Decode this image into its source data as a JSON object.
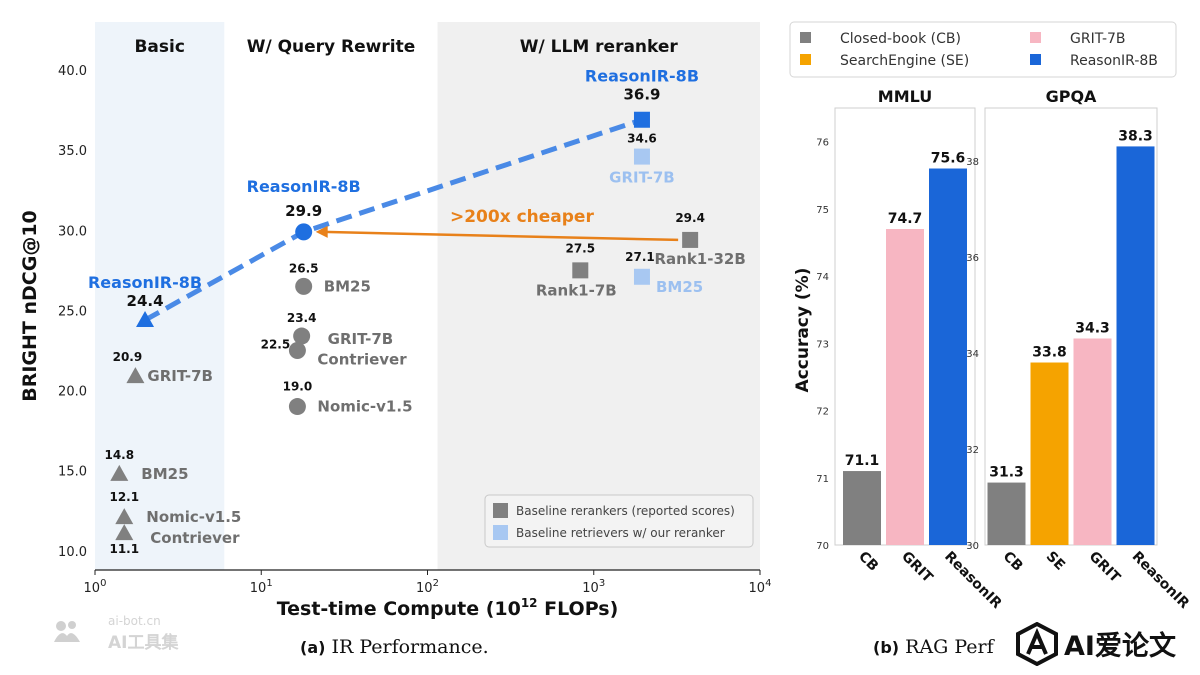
{
  "chart_data": [
    {
      "type": "scatter",
      "title": "",
      "xlabel": "Test-time Compute (10",
      "xlabel_sup": "12",
      "xlabel_tail": " FLOPs)",
      "ylabel": "BRIGHT nDCG@10",
      "xscale": "log",
      "xlim": [
        1,
        10000
      ],
      "ylim": [
        8.8,
        43
      ],
      "yticks": [
        10,
        15,
        20,
        25,
        30,
        35,
        40
      ],
      "ytick_labels": [
        "10.0",
        "15.0",
        "20.0",
        "25.0",
        "30.0",
        "35.0",
        "40.0"
      ],
      "xticks": [
        {
          "base": "10",
          "exp": "0",
          "value": 1
        },
        {
          "base": "10",
          "exp": "1",
          "value": 10
        },
        {
          "base": "10",
          "exp": "2",
          "value": 100
        },
        {
          "base": "10",
          "exp": "3",
          "value": 1000
        },
        {
          "base": "10",
          "exp": "4",
          "value": 10000
        }
      ],
      "regions": [
        {
          "label": "Basic",
          "from": 1,
          "to": 6,
          "color": "#eef4fa"
        },
        {
          "label": "W/ Query Rewrite",
          "from": 6,
          "to": 115,
          "color": "#ffffff"
        },
        {
          "label": "W/ LLM reranker",
          "from": 115,
          "to": 10000,
          "color": "#f0f0f0"
        }
      ],
      "points": [
        {
          "name": "ReasonIR-8B",
          "x": 2.0,
          "y": 24.4,
          "value": "24.4",
          "shape": "triangle",
          "color": "#1f6fe0",
          "highlight": true
        },
        {
          "name": "GRIT-7B",
          "x": 1.75,
          "y": 20.9,
          "value": "20.9",
          "shape": "triangle",
          "color": "#808080"
        },
        {
          "name": "BM25",
          "x": 1.4,
          "y": 14.8,
          "value": "14.8",
          "shape": "triangle",
          "color": "#808080"
        },
        {
          "name": "Nomic-v1.5",
          "x": 1.5,
          "y": 12.1,
          "value": "12.1",
          "shape": "triangle",
          "color": "#808080"
        },
        {
          "name": "Contriever",
          "x": 1.5,
          "y": 11.1,
          "value": "11.1",
          "shape": "triangle",
          "color": "#808080"
        },
        {
          "name": "ReasonIR-8B",
          "x": 18,
          "y": 29.9,
          "value": "29.9",
          "shape": "circle",
          "color": "#1f6fe0",
          "highlight": true
        },
        {
          "name": "BM25",
          "x": 18,
          "y": 26.5,
          "value": "26.5",
          "shape": "circle",
          "color": "#808080"
        },
        {
          "name": "GRIT-7B",
          "x": 17.5,
          "y": 23.4,
          "value": "23.4",
          "shape": "circle",
          "color": "#808080"
        },
        {
          "name": "Contriever",
          "x": 16.5,
          "y": 22.5,
          "value": "22.5",
          "shape": "circle",
          "color": "#808080"
        },
        {
          "name": "Nomic-v1.5",
          "x": 16.5,
          "y": 19.0,
          "value": "19.0",
          "shape": "circle",
          "color": "#808080"
        },
        {
          "name": "ReasonIR-8B",
          "x": 1950,
          "y": 36.9,
          "value": "36.9",
          "shape": "square",
          "color": "#1f6fe0",
          "highlight": true
        },
        {
          "name": "GRIT-7B",
          "x": 1950,
          "y": 34.6,
          "value": "34.6",
          "shape": "square",
          "color": "#a8c8f2"
        },
        {
          "name": "Rank1-32B",
          "x": 3800,
          "y": 29.4,
          "value": "29.4",
          "shape": "square",
          "color": "#808080"
        },
        {
          "name": "Rank1-7B",
          "x": 830,
          "y": 27.5,
          "value": "27.5",
          "shape": "square",
          "color": "#808080"
        },
        {
          "name": "BM25",
          "x": 1950,
          "y": 27.1,
          "value": "27.1",
          "shape": "square",
          "color": "#a8c8f2"
        }
      ],
      "trend_line": {
        "series": "ReasonIR-8B",
        "points": [
          [
            2.0,
            24.4
          ],
          [
            18,
            29.9
          ],
          [
            1950,
            36.9
          ]
        ],
        "color": "#4a8ae6"
      },
      "annotation": {
        "text": ">200x cheaper",
        "from": [
          3800,
          29.4
        ],
        "to": [
          18,
          29.9
        ],
        "color": "#e8811a"
      },
      "legend": {
        "position": "bottom-right",
        "entries": [
          {
            "label": "Baseline rerankers (reported scores)",
            "color": "#808080"
          },
          {
            "label": "Baseline retrievers w/ our reranker",
            "color": "#a8c8f2"
          }
        ]
      },
      "caption_prefix": "(a)",
      "caption": "IR Performance."
    },
    {
      "type": "bar",
      "ylabel": "Accuracy (%)",
      "legend": {
        "position": "top",
        "entries": [
          {
            "label": "Closed-book (CB)",
            "color": "#808080"
          },
          {
            "label": "GRIT-7B",
            "color": "#f7b6c2"
          },
          {
            "label": "SearchEngine (SE)",
            "color": "#f5a300"
          },
          {
            "label": "ReasonIR-8B",
            "color": "#1a66d8"
          }
        ]
      },
      "panels": [
        {
          "title": "MMLU",
          "ylim": [
            70,
            76.5
          ],
          "yticks": [
            70,
            71,
            72,
            73,
            74,
            75,
            76
          ],
          "categories": [
            "CB",
            "GRIT",
            "ReasonIR"
          ],
          "values": [
            71.1,
            74.7,
            75.6
          ],
          "value_labels": [
            "71.1",
            "74.7",
            "75.6"
          ],
          "colors": [
            "#808080",
            "#f7b6c2",
            "#1a66d8"
          ]
        },
        {
          "title": "GPQA",
          "ylim": [
            30,
            39.1
          ],
          "yticks": [
            30,
            32,
            34,
            36,
            38
          ],
          "categories": [
            "CB",
            "SE",
            "GRIT",
            "ReasonIR"
          ],
          "values": [
            31.3,
            33.8,
            34.3,
            38.3
          ],
          "value_labels": [
            "31.3",
            "33.8",
            "34.3",
            "38.3"
          ],
          "colors": [
            "#808080",
            "#f5a300",
            "#f7b6c2",
            "#1a66d8"
          ]
        }
      ],
      "caption_prefix": "(b)",
      "caption": "RAG Perf"
    }
  ],
  "watermarks": {
    "left_top": "ai-bot.cn",
    "left_bottom": "AI工具集",
    "right": "AI爱论文"
  }
}
